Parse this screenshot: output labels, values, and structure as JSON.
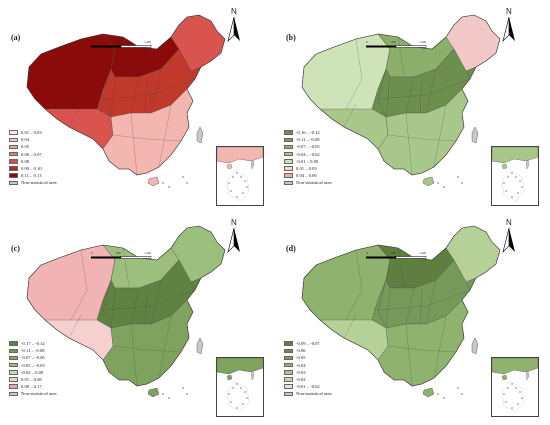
{
  "north_letter": "N",
  "scale_labels": [
    "0",
    "700",
    "1,400"
  ],
  "nonstat_label": "Non-statistical area",
  "panels": [
    {
      "label": "(a)",
      "fill_main": "#c0392b",
      "fill_dark": "#8b0a0a",
      "fill_mid": "#d9534f",
      "fill_light": "#f4b6b0",
      "fill_pale": "#fbe0dc",
      "legend": [
        {
          "text": "0.01 – 0.03",
          "color": "#fde6e3"
        },
        {
          "text": "0.04",
          "color": "#f8c7c1"
        },
        {
          "text": "0.05",
          "color": "#f0a198"
        },
        {
          "text": "0.06 – 0.07",
          "color": "#e27a6f"
        },
        {
          "text": "0.08",
          "color": "#d2504a"
        },
        {
          "text": "0.09 – 0.10",
          "color": "#b52a25"
        },
        {
          "text": "0.11 – 0.13",
          "color": "#8b0a0a"
        }
      ]
    },
    {
      "label": "(b)",
      "fill_main": "#a9c78a",
      "fill_dark": "#6d8f4e",
      "fill_mid": "#8caf6b",
      "fill_light": "#cfe3b8",
      "fill_pale": "#f2c7c7",
      "legend": [
        {
          "text": "-0.16 – -0.12",
          "color": "#6d8f4e"
        },
        {
          "text": "-0.11 – -0.08",
          "color": "#7f9f5c"
        },
        {
          "text": "-0.07 – -0.05",
          "color": "#93b26f"
        },
        {
          "text": "-0.04 – -0.02",
          "color": "#aac68a"
        },
        {
          "text": "-0.01 – 0.00",
          "color": "#cde2b6"
        },
        {
          "text": "0.01 – 0.03",
          "color": "#f6d4d4"
        },
        {
          "text": "0.04 – 0.06",
          "color": "#eea9a9"
        }
      ]
    },
    {
      "label": "(c)",
      "fill_main": "#9dbf7e",
      "fill_dark": "#5f8242",
      "fill_mid": "#7fa35e",
      "fill_light": "#f1b3b3",
      "fill_pale": "#f6cfcf",
      "legend": [
        {
          "text": "-0.17 – -0.12",
          "color": "#5f8242"
        },
        {
          "text": "-0.11 – -0.08",
          "color": "#719456"
        },
        {
          "text": "-0.07 – -0.06",
          "color": "#86a869"
        },
        {
          "text": "-0.05 – -0.03",
          "color": "#9dbf7e"
        },
        {
          "text": "-0.02 – 0.00",
          "color": "#c4dcaa"
        },
        {
          "text": "0.01 – 0.08",
          "color": "#f6d0d0"
        },
        {
          "text": "0.09 – 0.17",
          "color": "#eda3a3"
        }
      ]
    },
    {
      "label": "(d)",
      "fill_main": "#8fb26e",
      "fill_dark": "#5e7f40",
      "fill_mid": "#76995a",
      "fill_light": "#b6d197",
      "fill_pale": "#d2e5bd",
      "legend": [
        {
          "text": "-0.09 – -0.07",
          "color": "#5e7f40"
        },
        {
          "text": "-0.06",
          "color": "#6c8d4e"
        },
        {
          "text": "-0.05",
          "color": "#7d9f5e"
        },
        {
          "text": "-0.04",
          "color": "#92b371"
        },
        {
          "text": "-0.03",
          "color": "#a8c688"
        },
        {
          "text": "-0.02",
          "color": "#c1d9a6"
        },
        {
          "text": "-0.01 – -0.02",
          "color": "#dbeaca"
        }
      ]
    }
  ]
}
